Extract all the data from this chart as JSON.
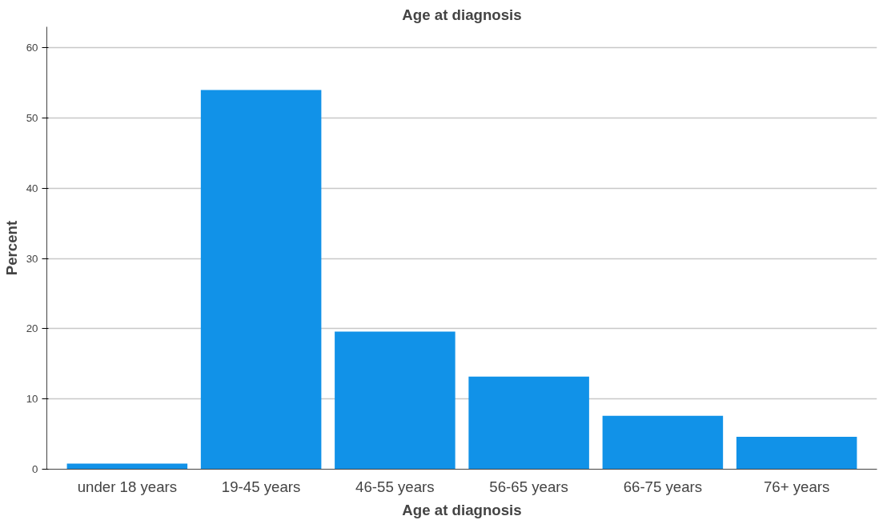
{
  "chart_data": {
    "type": "bar",
    "title": "Age at diagnosis",
    "xlabel": "Age at diagnosis",
    "ylabel": "Percent",
    "categories": [
      "under 18 years",
      "19-45 years",
      "46-55 years",
      "56-65 years",
      "66-75 years",
      "76+ years"
    ],
    "values": [
      0.8,
      54,
      19.6,
      13.2,
      7.6,
      4.6
    ],
    "color": "#1192e8",
    "ylim": [
      0,
      63
    ],
    "yticks": [
      0,
      10,
      20,
      30,
      40,
      50,
      60
    ],
    "grid": "y"
  }
}
